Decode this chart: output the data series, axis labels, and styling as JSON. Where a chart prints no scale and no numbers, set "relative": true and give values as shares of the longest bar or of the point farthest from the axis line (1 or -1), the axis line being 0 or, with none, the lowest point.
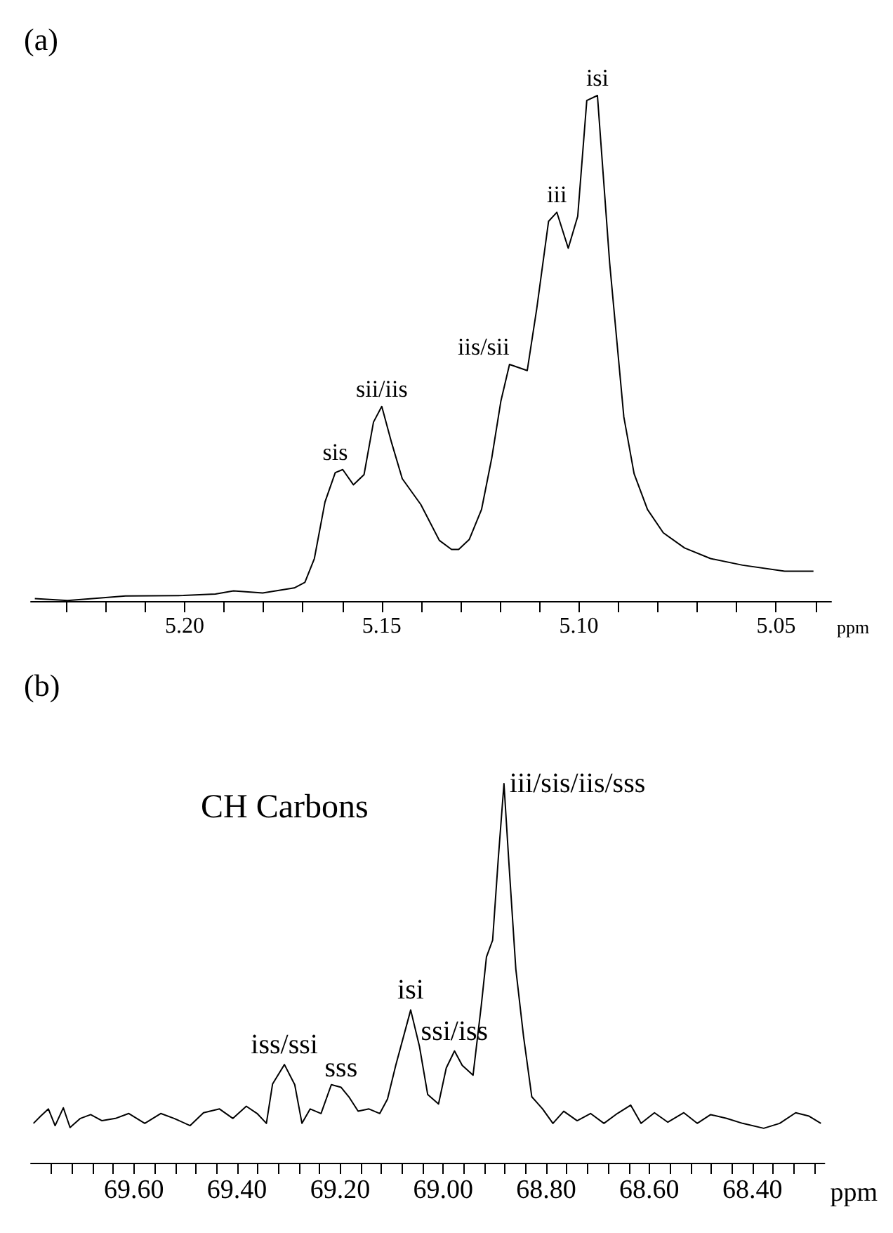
{
  "chart_data": [
    {
      "type": "line",
      "title": "(a)",
      "xlabel": "ppm",
      "relative": true,
      "tick_labels": "x",
      "grid": false,
      "marker": "none",
      "line_style": "solid",
      "xlim": [
        5.239,
        5.036
      ],
      "xticks": [
        {
          "value": 5.23,
          "label": null
        },
        {
          "value": 5.22,
          "label": null
        },
        {
          "value": 5.21,
          "label": null
        },
        {
          "value": 5.2,
          "label": "5.20"
        },
        {
          "value": 5.19,
          "label": null
        },
        {
          "value": 5.18,
          "label": null
        },
        {
          "value": 5.17,
          "label": null
        },
        {
          "value": 5.16,
          "label": null
        },
        {
          "value": 5.15,
          "label": "5.15"
        },
        {
          "value": 5.14,
          "label": null
        },
        {
          "value": 5.13,
          "label": null
        },
        {
          "value": 5.12,
          "label": null
        },
        {
          "value": 5.11,
          "label": null
        },
        {
          "value": 5.1,
          "label": "5.10"
        },
        {
          "value": 5.09,
          "label": null
        },
        {
          "value": 5.08,
          "label": null
        },
        {
          "value": 5.07,
          "label": null
        },
        {
          "value": 5.06,
          "label": null
        },
        {
          "value": 5.05,
          "label": "5.05"
        },
        {
          "value": 5.04,
          "label": null
        }
      ],
      "series": [
        {
          "color": "#000000",
          "x": [
            5.238,
            5.2297,
            5.2217,
            5.215,
            5.2003,
            5.1922,
            5.1876,
            5.1802,
            5.1722,
            5.1695,
            5.1671,
            5.1644,
            5.1618,
            5.1599,
            5.1572,
            5.1545,
            5.1521,
            5.15,
            5.1475,
            5.1448,
            5.1401,
            5.1354,
            5.1323,
            5.1305,
            5.1278,
            5.1247,
            5.1221,
            5.1198,
            5.1176,
            5.1131,
            5.1107,
            5.1077,
            5.1056,
            5.1027,
            5.1003,
            5.098,
            5.0953,
            5.0922,
            5.0886,
            5.086,
            5.0826,
            5.0786,
            5.0732,
            5.0666,
            5.0585,
            5.0478,
            5.0405
          ],
          "values": [
            0.005,
            0.001,
            0.006,
            0.01,
            0.011,
            0.014,
            0.02,
            0.016,
            0.026,
            0.037,
            0.084,
            0.196,
            0.254,
            0.26,
            0.23,
            0.25,
            0.354,
            0.385,
            0.313,
            0.242,
            0.191,
            0.12,
            0.102,
            0.102,
            0.122,
            0.181,
            0.283,
            0.395,
            0.468,
            0.456,
            0.578,
            0.751,
            0.769,
            0.698,
            0.761,
            0.99,
            1.0,
            0.669,
            0.364,
            0.252,
            0.181,
            0.135,
            0.105,
            0.084,
            0.071,
            0.059,
            0.059
          ]
        }
      ],
      "annotations": [
        {
          "text": "sis",
          "x": 5.1618,
          "y": 0.26
        },
        {
          "text": "sii/iis",
          "x": 5.15,
          "y": 0.385
        },
        {
          "text": "iis/sii",
          "x": 5.1176,
          "y": 0.468
        },
        {
          "text": "iii",
          "x": 5.1056,
          "y": 0.769
        },
        {
          "text": "isi",
          "x": 5.0953,
          "y": 1.0
        }
      ]
    },
    {
      "type": "line",
      "title": "(b)",
      "xlabel": "ppm",
      "relative": true,
      "tick_labels": "x",
      "grid": false,
      "marker": "none",
      "line_style": "solid",
      "xlim": [
        69.8,
        68.26
      ],
      "xticks": [
        {
          "value": 69.76,
          "label": null
        },
        {
          "value": 69.72,
          "label": null
        },
        {
          "value": 69.68,
          "label": null
        },
        {
          "value": 69.64,
          "label": null
        },
        {
          "value": 69.6,
          "label": "69.60"
        },
        {
          "value": 69.56,
          "label": null
        },
        {
          "value": 69.52,
          "label": null
        },
        {
          "value": 69.48,
          "label": null
        },
        {
          "value": 69.44,
          "label": null
        },
        {
          "value": 69.4,
          "label": "69.40"
        },
        {
          "value": 69.36,
          "label": null
        },
        {
          "value": 69.32,
          "label": null
        },
        {
          "value": 69.28,
          "label": null
        },
        {
          "value": 69.24,
          "label": null
        },
        {
          "value": 69.2,
          "label": "69.20"
        },
        {
          "value": 69.16,
          "label": null
        },
        {
          "value": 69.12,
          "label": null
        },
        {
          "value": 69.08,
          "label": null
        },
        {
          "value": 69.04,
          "label": null
        },
        {
          "value": 69.0,
          "label": "69.00"
        },
        {
          "value": 68.96,
          "label": null
        },
        {
          "value": 68.92,
          "label": null
        },
        {
          "value": 68.88,
          "label": null
        },
        {
          "value": 68.84,
          "label": null
        },
        {
          "value": 68.8,
          "label": "68.80"
        },
        {
          "value": 68.76,
          "label": null
        },
        {
          "value": 68.72,
          "label": null
        },
        {
          "value": 68.68,
          "label": null
        },
        {
          "value": 68.64,
          "label": null
        },
        {
          "value": 68.6,
          "label": "68.60"
        },
        {
          "value": 68.56,
          "label": null
        },
        {
          "value": 68.52,
          "label": null
        },
        {
          "value": 68.48,
          "label": null
        },
        {
          "value": 68.44,
          "label": null
        },
        {
          "value": 68.4,
          "label": "68.40"
        },
        {
          "value": 68.36,
          "label": null
        },
        {
          "value": 68.32,
          "label": null
        },
        {
          "value": 68.28,
          "label": null
        }
      ],
      "series": [
        {
          "color": "#000000",
          "x": [
            69.795,
            69.781,
            69.766,
            69.753,
            69.737,
            69.724,
            69.704,
            69.684,
            69.662,
            69.636,
            69.61,
            69.579,
            69.548,
            69.522,
            69.491,
            69.465,
            69.434,
            69.408,
            69.382,
            69.361,
            69.343,
            69.331,
            69.308,
            69.288,
            69.274,
            69.258,
            69.237,
            69.217,
            69.198,
            69.183,
            69.165,
            69.144,
            69.123,
            69.108,
            69.092,
            69.063,
            69.046,
            69.03,
            69.009,
            68.994,
            68.978,
            68.963,
            68.942,
            68.926,
            68.916,
            68.904,
            68.893,
            68.882,
            68.873,
            68.859,
            68.844,
            68.828,
            68.807,
            68.787,
            68.766,
            68.74,
            68.714,
            68.688,
            68.662,
            68.636,
            68.616,
            68.59,
            68.564,
            68.533,
            68.507,
            68.481,
            68.45,
            68.419,
            68.378,
            68.347,
            68.316,
            68.29,
            68.267
          ],
          "values": [
            0.104,
            0.123,
            0.142,
            0.098,
            0.145,
            0.093,
            0.117,
            0.127,
            0.111,
            0.117,
            0.13,
            0.104,
            0.13,
            0.117,
            0.098,
            0.132,
            0.142,
            0.117,
            0.149,
            0.13,
            0.104,
            0.208,
            0.259,
            0.206,
            0.104,
            0.142,
            0.13,
            0.206,
            0.199,
            0.174,
            0.136,
            0.142,
            0.13,
            0.168,
            0.257,
            0.403,
            0.307,
            0.18,
            0.155,
            0.25,
            0.295,
            0.257,
            0.231,
            0.415,
            0.543,
            0.587,
            0.803,
            1.0,
            0.803,
            0.511,
            0.333,
            0.174,
            0.142,
            0.104,
            0.136,
            0.111,
            0.13,
            0.104,
            0.13,
            0.152,
            0.104,
            0.132,
            0.107,
            0.132,
            0.104,
            0.127,
            0.117,
            0.104,
            0.091,
            0.104,
            0.132,
            0.123,
            0.104
          ]
        }
      ],
      "annotations": [
        "CH Carbons",
        {
          "text": "iss/ssi",
          "x": 69.308,
          "y": 0.259
        },
        {
          "text": "sss",
          "x": 69.198,
          "y": 0.199
        },
        {
          "text": "isi",
          "x": 69.063,
          "y": 0.403
        },
        {
          "text": "ssi/iss",
          "x": 68.978,
          "y": 0.295
        },
        {
          "text": "iii/sis/iis/sss",
          "x": 68.882,
          "y": 1.0
        }
      ]
    }
  ]
}
